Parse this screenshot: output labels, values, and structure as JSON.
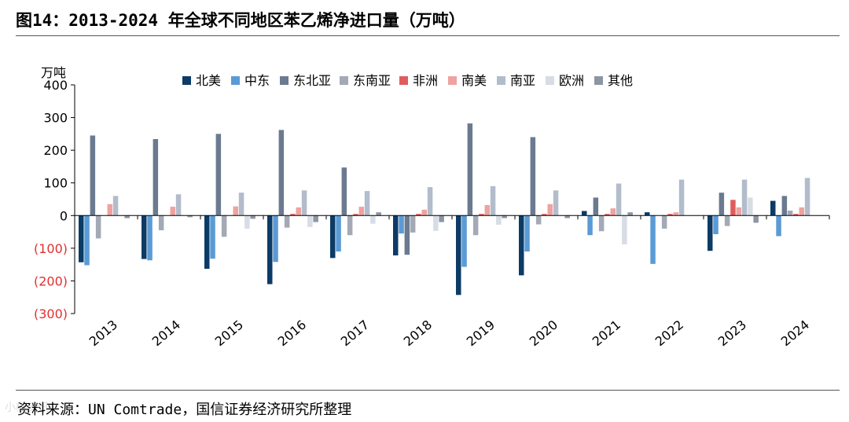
{
  "title": "图14：2013-2024 年全球不同地区苯乙烯净进口量（万吨）",
  "source": "资料来源：UN Comtrade，国信证券经济研究所整理",
  "watermark": "小楼资讯",
  "chart_data": {
    "type": "bar",
    "title": "图14：2013-2024 年全球不同地区苯乙烯净进口量（万吨）",
    "ylabel": "万吨",
    "xlabel": "",
    "ylim": [
      -300,
      400
    ],
    "yticks": [
      400,
      300,
      200,
      100,
      0,
      -100,
      -200,
      -300
    ],
    "ytick_labels": [
      "400",
      "300",
      "200",
      "100",
      "0",
      "(100)",
      "(200)",
      "(300)"
    ],
    "negative_tick_color": "#e03030",
    "legend_position": "top",
    "categories": [
      "2013",
      "2014",
      "2015",
      "2016",
      "2017",
      "2018",
      "2019",
      "2020",
      "2021",
      "2022",
      "2023",
      "2024"
    ],
    "series": [
      {
        "name": "北美",
        "color": "#0c3b66",
        "values": [
          -143,
          -133,
          -163,
          -210,
          -130,
          -122,
          -243,
          -183,
          14,
          10,
          -108,
          45
        ]
      },
      {
        "name": "中东",
        "color": "#5b9bd5",
        "values": [
          -152,
          -137,
          -132,
          -142,
          -110,
          -55,
          -157,
          -110,
          -60,
          -148,
          -57,
          -63
        ]
      },
      {
        "name": "东北亚",
        "color": "#6b7a90",
        "values": [
          245,
          234,
          250,
          262,
          147,
          -120,
          282,
          240,
          55,
          0,
          70,
          60
        ]
      },
      {
        "name": "东南亚",
        "color": "#a3a9b5",
        "values": [
          -70,
          -45,
          -65,
          -37,
          -60,
          -52,
          -60,
          -27,
          -48,
          -40,
          -32,
          15
        ]
      },
      {
        "name": "非洲",
        "color": "#e05c5c",
        "values": [
          0,
          0,
          0,
          5,
          5,
          5,
          5,
          5,
          5,
          5,
          48,
          5
        ]
      },
      {
        "name": "南美",
        "color": "#eea3a0",
        "values": [
          35,
          27,
          28,
          25,
          27,
          18,
          32,
          35,
          22,
          10,
          25,
          25
        ]
      },
      {
        "name": "南亚",
        "color": "#b2bccb",
        "values": [
          60,
          65,
          70,
          77,
          75,
          87,
          90,
          77,
          98,
          110,
          110,
          115
        ]
      },
      {
        "name": "欧洲",
        "color": "#d7dce5",
        "values": [
          0,
          0,
          -40,
          -35,
          -25,
          -47,
          -28,
          0,
          -88,
          0,
          55,
          0
        ]
      },
      {
        "name": "其他",
        "color": "#8c96a3",
        "values": [
          -8,
          -5,
          -10,
          -20,
          10,
          -20,
          -8,
          -8,
          10,
          0,
          -22,
          0
        ]
      }
    ]
  }
}
